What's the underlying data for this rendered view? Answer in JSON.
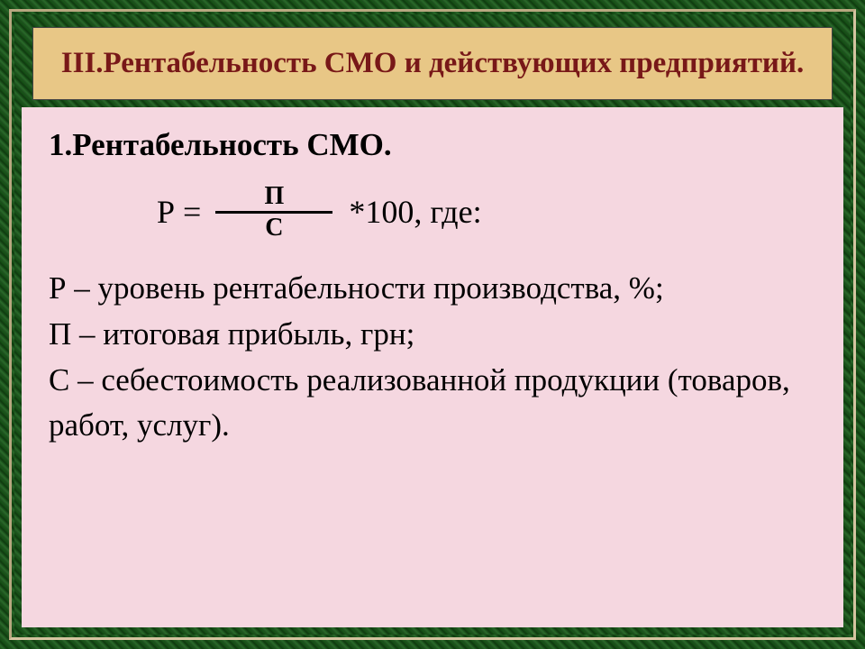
{
  "colors": {
    "title_bg": "#e8c786",
    "title_text": "#781818",
    "content_bg": "#f5d7e0",
    "border_tan": "#d4c4a0",
    "text": "#000000"
  },
  "title": "III.Рентабельность СМО и действующих предприятий.",
  "heading": "1.Рентабельность СМО.",
  "formula": {
    "lhs": "Р =",
    "numerator": "П",
    "denominator": "С",
    "rhs": "*100, где:"
  },
  "definitions": {
    "line1": "Р – уровень рентабельности производства, %;",
    "line2": "П – итоговая прибыль, грн;",
    "line3": "С – себестоимость реализованной продукции (товаров, работ, услуг)."
  }
}
